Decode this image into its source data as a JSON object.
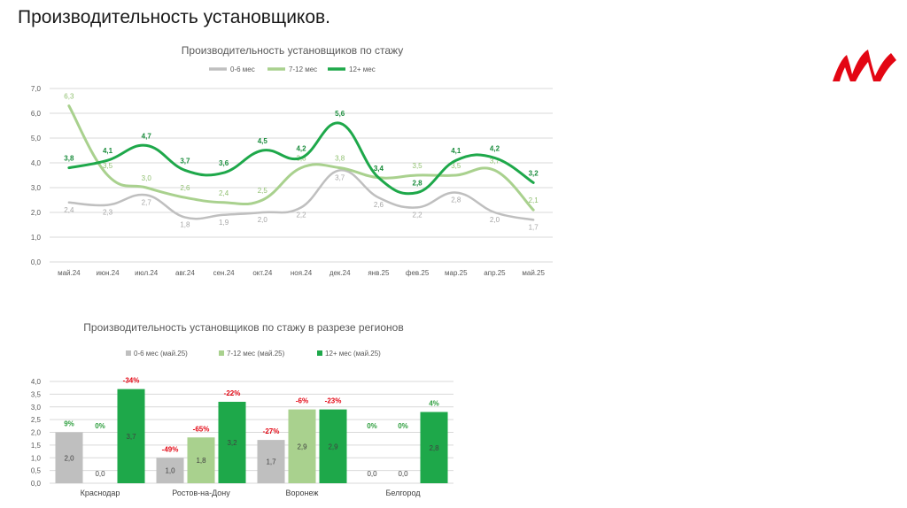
{
  "slide": {
    "title": "Производительность установщиков."
  },
  "brand": {
    "logo": "red-m-logo",
    "color": "#e30613"
  },
  "colors": {
    "c0_6": "#bfbfbf",
    "c7_12": "#a9d18e",
    "c12": "#1ea84a",
    "neg_pct": "#e30613",
    "pos_pct": "#2e9e3e"
  },
  "chart_data": [
    {
      "type": "line",
      "title": "Производительность установщиков по стажу",
      "categories": [
        "май.24",
        "июн.24",
        "июл.24",
        "авг.24",
        "сен.24",
        "окт.24",
        "ноя.24",
        "дек.24",
        "янв.25",
        "фев.25",
        "мар.25",
        "апр.25",
        "май.25"
      ],
      "ylim": [
        0,
        7
      ],
      "yticks": [
        "0,0",
        "1,0",
        "2,0",
        "3,0",
        "4,0",
        "5,0",
        "6,0",
        "7,0"
      ],
      "grid": true,
      "legend_position": "top",
      "series": [
        {
          "name": "0-6 мес",
          "values": [
            2.4,
            2.3,
            2.7,
            1.8,
            1.9,
            2.0,
            2.2,
            3.7,
            2.6,
            2.2,
            2.8,
            2.0,
            1.7
          ],
          "labels": [
            "2,4",
            "2,3",
            "2,7",
            "1,8",
            "1,9",
            "2,0",
            "2,2",
            "3,7",
            "2,6",
            "2,2",
            "2,8",
            "2,0",
            "1,7"
          ]
        },
        {
          "name": "7-12 мес",
          "values": [
            6.3,
            3.5,
            3.0,
            2.6,
            2.4,
            2.5,
            3.8,
            3.8,
            3.4,
            3.5,
            3.5,
            3.7,
            2.1
          ],
          "labels": [
            "6,3",
            "3,5",
            "3,0",
            "2,6",
            "2,4",
            "2,5",
            "3,8",
            "3,8",
            "3,4",
            "3,5",
            "3,5",
            "3,7",
            "2,1"
          ]
        },
        {
          "name": "12+ мес",
          "values": [
            3.8,
            4.1,
            4.7,
            3.7,
            3.6,
            4.5,
            4.2,
            5.6,
            3.4,
            2.8,
            4.1,
            4.2,
            3.2
          ],
          "labels": [
            "3,8",
            "4,1",
            "4,7",
            "3,7",
            "3,6",
            "4,5",
            "4,2",
            "5,6",
            "3,4",
            "2,8",
            "4,1",
            "4,2",
            "3,2"
          ]
        }
      ]
    },
    {
      "type": "bar",
      "title": "Производительность установщиков по стажу в разрезе регионов",
      "categories": [
        "Краснодар",
        "Ростов-на-Дону",
        "Воронеж",
        "Белгород"
      ],
      "ylim": [
        0,
        4
      ],
      "yticks": [
        "0,0",
        "0,5",
        "1,0",
        "1,5",
        "2,0",
        "2,5",
        "3,0",
        "3,5",
        "4,0"
      ],
      "grid": true,
      "legend_position": "top",
      "series": [
        {
          "name": "0-6 мес (май.25)",
          "values": [
            2.0,
            1.0,
            1.7,
            0.0
          ],
          "labels": [
            "2,0",
            "1,0",
            "1,7",
            "0,0"
          ],
          "changes": [
            "9%",
            "-49%",
            "-27%",
            "0%"
          ]
        },
        {
          "name": "7-12 мес (май.25)",
          "values": [
            0.0,
            1.8,
            2.9,
            0.0
          ],
          "labels": [
            "0,0",
            "1,8",
            "2,9",
            "0,0"
          ],
          "changes": [
            "0%",
            "-65%",
            "-6%",
            "0%"
          ]
        },
        {
          "name": "12+ мес (май.25)",
          "values": [
            3.7,
            3.2,
            2.9,
            2.8
          ],
          "labels": [
            "3,7",
            "3,2",
            "2,9",
            "2,8"
          ],
          "changes": [
            "-34%",
            "-22%",
            "-23%",
            "4%"
          ]
        }
      ]
    }
  ]
}
